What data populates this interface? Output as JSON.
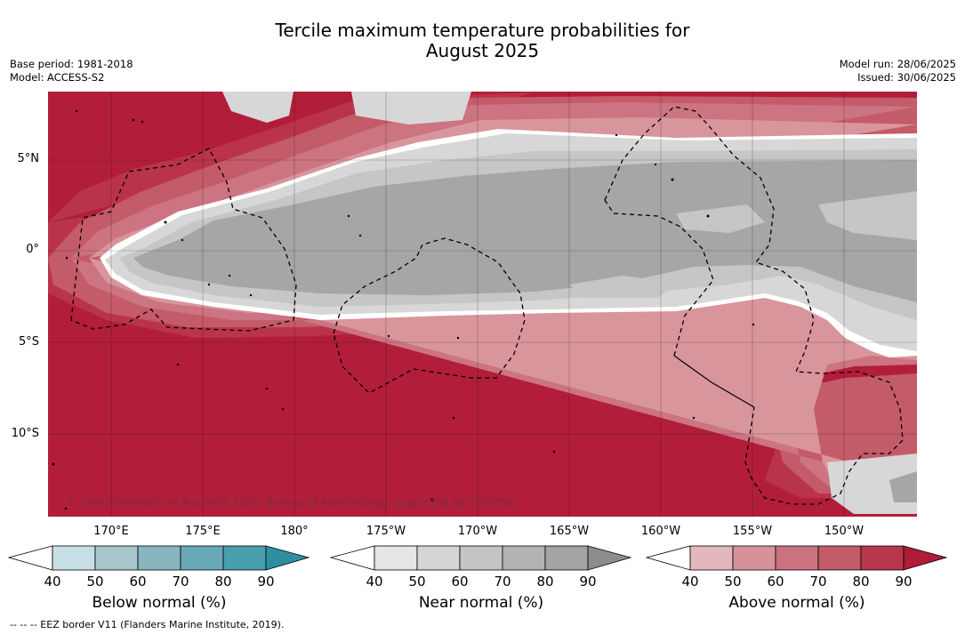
{
  "title_line1": "Tercile maximum temperature probabilities for",
  "title_line2": "August 2025",
  "base_period": "Base period: 1981-2018",
  "model": "Model: ACCESS-S2",
  "model_run": "Model run: 28/06/2025",
  "issued": "Issued: 30/06/2025",
  "copyright": "© Commonwealth of Australia 2025, Bureau of Meteorology, supported by COSPPac",
  "footer": "--  --  -- EEZ border V11 (Flanders Marine Institute, 2019).",
  "lat_labels": [
    "5°N",
    "0°",
    "5°S",
    "10°S"
  ],
  "lon_labels": [
    "170°E",
    "175°E",
    "180°",
    "175°W",
    "170°W",
    "165°W",
    "160°W",
    "155°W",
    "150°W"
  ],
  "colorbars": [
    {
      "label": "Below normal (%)",
      "ticks": [
        "40",
        "50",
        "60",
        "70",
        "80",
        "90"
      ],
      "colors": [
        "#c7e0e6",
        "#a7c7cd",
        "#88b5bf",
        "#68a8b7",
        "#489fae",
        "#2e8fa3"
      ]
    },
    {
      "label": "Near normal (%)",
      "ticks": [
        "40",
        "50",
        "60",
        "70",
        "80",
        "90"
      ],
      "colors": [
        "#e5e5e5",
        "#d5d5d5",
        "#c4c4c4",
        "#b3b3b3",
        "#a4a4a4",
        "#8d8d8d"
      ]
    },
    {
      "label": "Above normal (%)",
      "ticks": [
        "40",
        "50",
        "60",
        "70",
        "80",
        "90"
      ],
      "colors": [
        "#e2b8bd",
        "#d59399",
        "#ca727e",
        "#c15a69",
        "#b8374c",
        "#ae1c38"
      ]
    }
  ],
  "map_colors": {
    "above_90": "#b21e3a",
    "above_80": "#ba3449",
    "above_70": "#c45b69",
    "above_60": "#cc7481",
    "above_50": "#d9959c",
    "white": "#ffffff",
    "near_50": "#d7d7d7",
    "near_60": "#c6c6c6",
    "near_70": "#a6a6a6"
  }
}
